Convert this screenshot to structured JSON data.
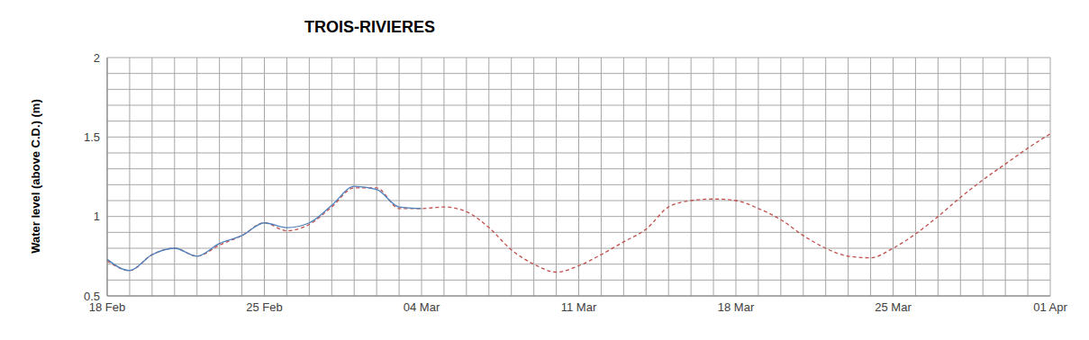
{
  "chart_data": {
    "type": "line",
    "title": "TROIS-RIVIERES",
    "y_label": "Water level (above C.D.) (m)",
    "categories": [
      "18 Feb",
      null,
      null,
      null,
      null,
      null,
      null,
      "25 Feb",
      null,
      null,
      null,
      null,
      null,
      null,
      "04 Mar",
      null,
      null,
      null,
      null,
      null,
      null,
      "11 Mar",
      null,
      null,
      null,
      null,
      null,
      null,
      "18 Mar",
      null,
      null,
      null,
      null,
      null,
      null,
      "25 Mar",
      null,
      null,
      null,
      null,
      null,
      null,
      "01 Apr"
    ],
    "series": [
      {
        "color": "#c0504d",
        "line_style": "dashed",
        "values": [
          0.72,
          0.66,
          0.76,
          0.8,
          0.75,
          0.82,
          0.88,
          0.96,
          0.91,
          0.95,
          1.06,
          1.18,
          1.18,
          1.05,
          1.05,
          1.06,
          1.03,
          0.93,
          0.79,
          0.7,
          0.65,
          0.69,
          0.76,
          0.84,
          0.92,
          1.06,
          1.1,
          1.11,
          1.1,
          1.05,
          0.98,
          0.88,
          0.8,
          0.75,
          0.74,
          0.8,
          0.89,
          1.0,
          1.12,
          1.23,
          1.33,
          1.43,
          1.52
        ]
      },
      {
        "color": "#4f81bd",
        "line_style": "solid",
        "values": [
          0.73,
          0.66,
          0.76,
          0.8,
          0.75,
          0.83,
          0.88,
          0.96,
          0.93,
          0.96,
          1.07,
          1.19,
          1.17,
          1.06,
          1.05,
          null,
          null,
          null,
          null,
          null,
          null,
          null,
          null,
          null,
          null,
          null,
          null,
          null,
          null,
          null,
          null,
          null,
          null,
          null,
          null,
          null,
          null,
          null,
          null,
          null,
          null,
          null,
          null
        ]
      }
    ],
    "ylim": [
      0.5,
      2
    ],
    "yticks": [
      0.5,
      1,
      1.5,
      2
    ],
    "grid": true
  }
}
